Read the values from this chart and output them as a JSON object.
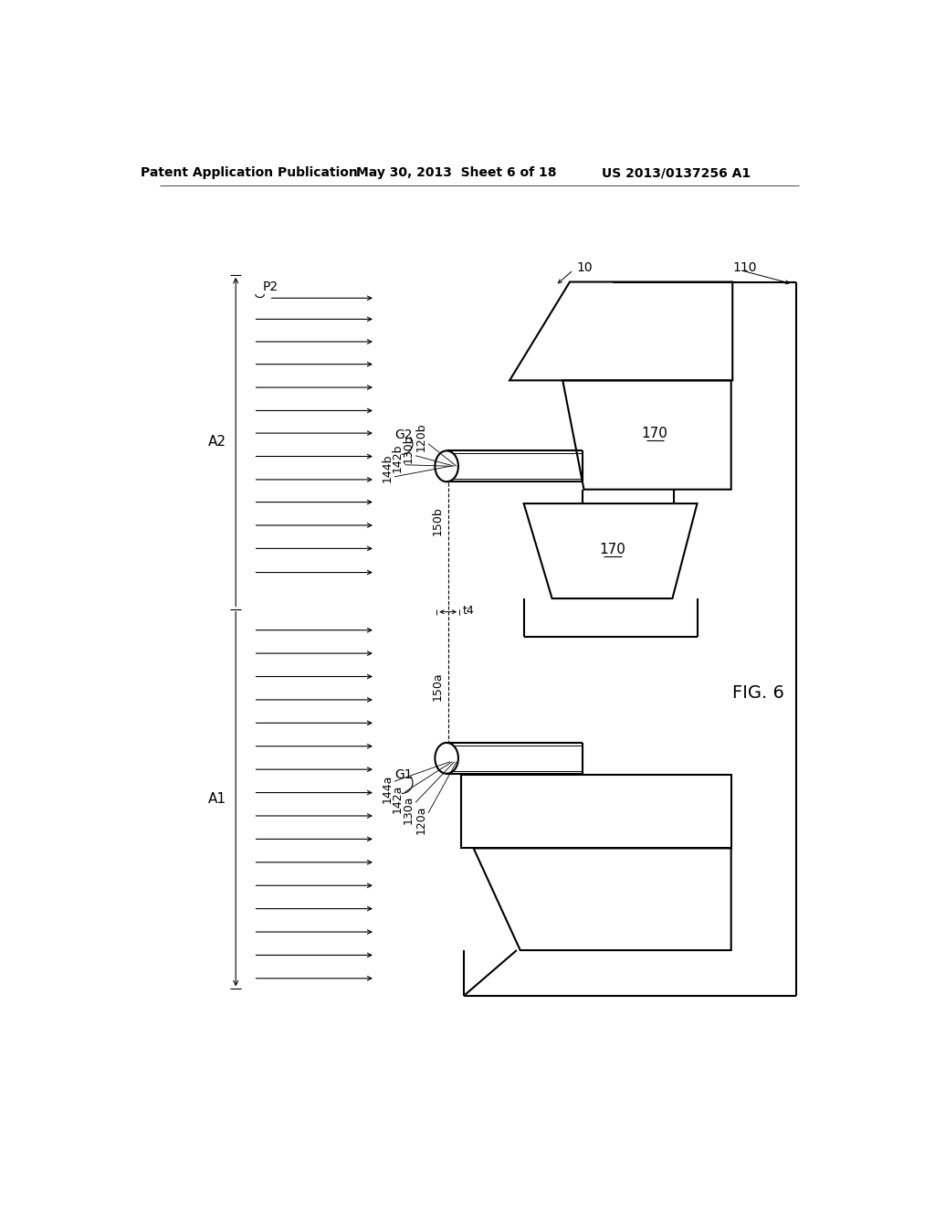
{
  "bg_color": "#ffffff",
  "lw": 1.5,
  "tlw": 0.8,
  "header_left": "Patent Application Publication",
  "header_mid": "May 30, 2013  Sheet 6 of 18",
  "header_right": "US 2013/0137256 A1",
  "fig_label": "FIG. 6"
}
